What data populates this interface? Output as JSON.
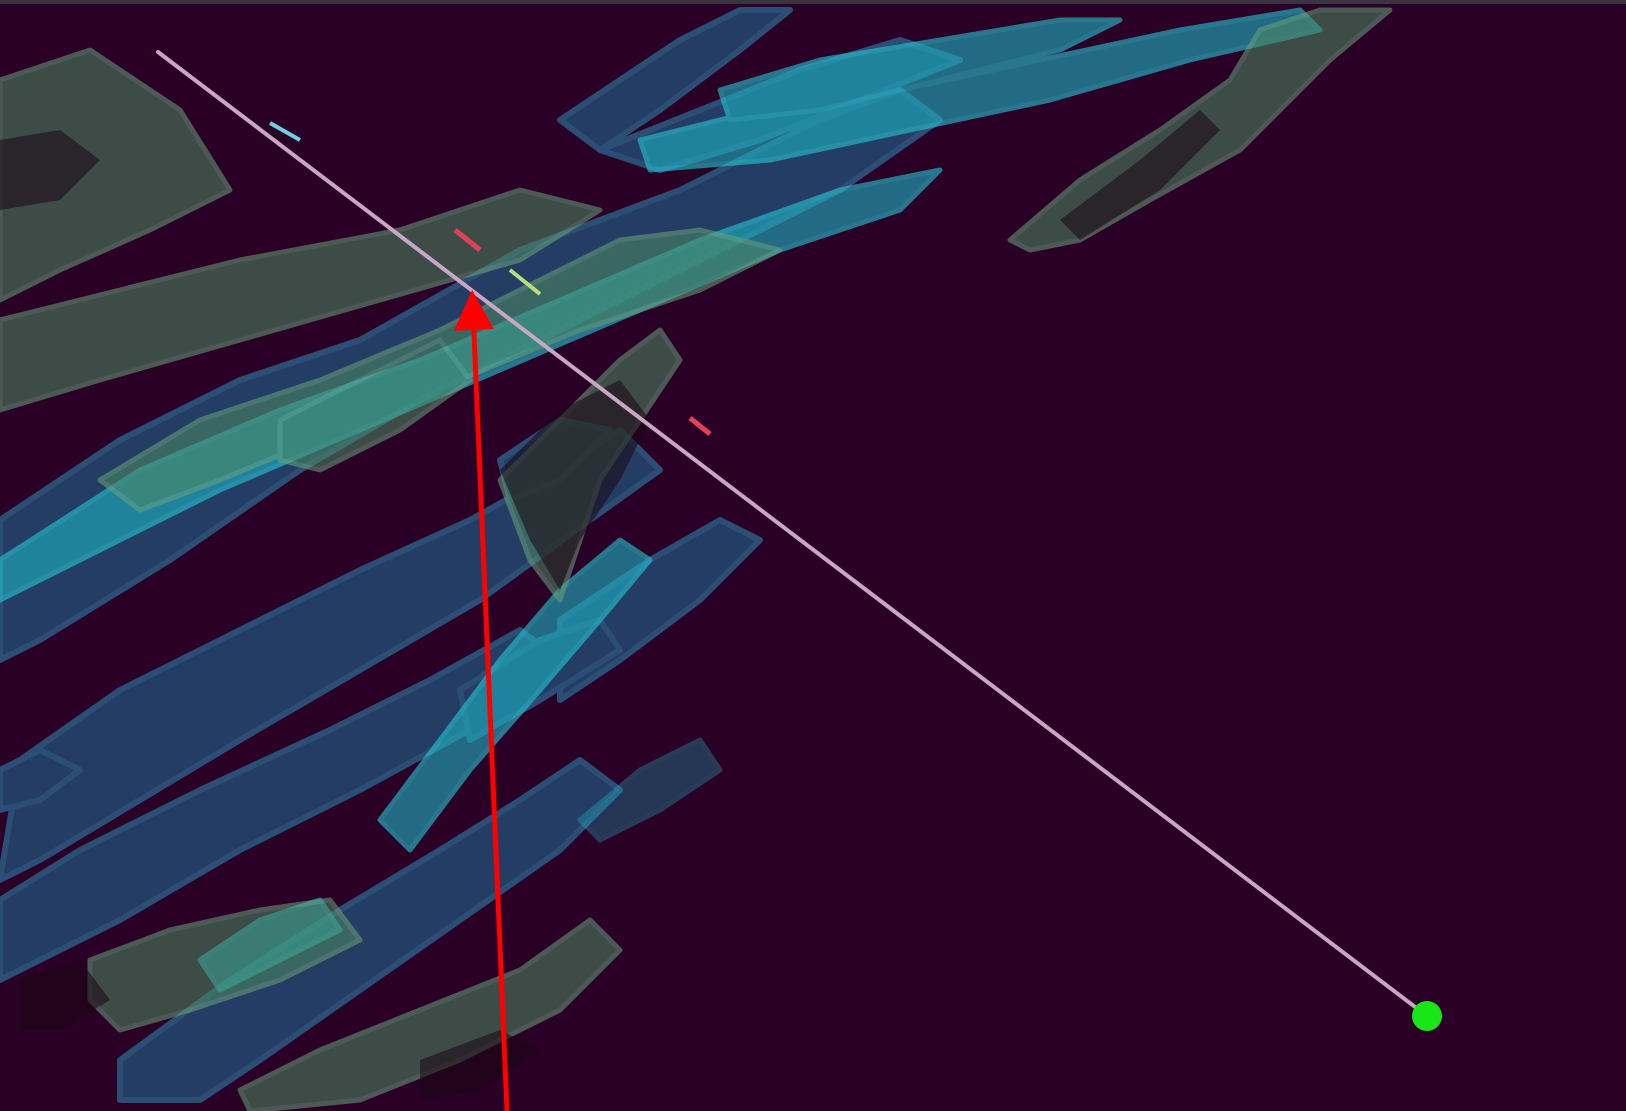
{
  "scene": {
    "background_color": "#2a0026",
    "border_color": "#3a3340",
    "ore_body_colors": {
      "teal": "#1fb3c4",
      "blue": "#1f6f9a",
      "green": "#4f8a63",
      "dark": "#1a0612"
    },
    "drillhole": {
      "trace_color": "#c9a6c4",
      "highlight_colors": [
        "#e0405a",
        "#b7e07a",
        "#6fd0e0"
      ],
      "collar_color": "#19e619"
    },
    "annotation_arrow": {
      "color": "#ff0000"
    }
  }
}
